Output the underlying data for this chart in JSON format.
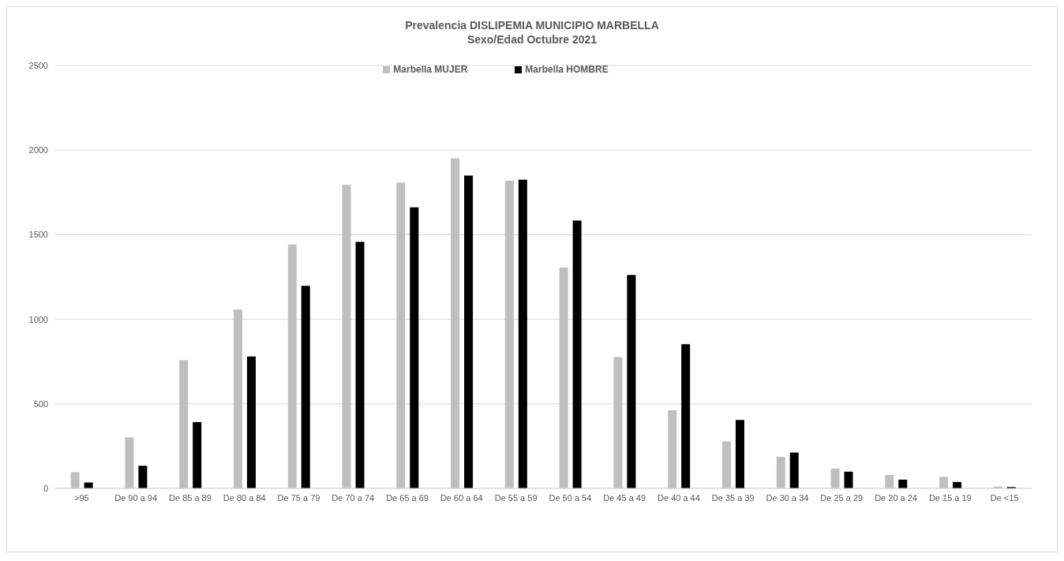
{
  "chart_data": {
    "type": "bar",
    "title": "Prevalencia DISLIPEMIA MUNICIPIO MARBELLA",
    "subtitle": "Sexo/Edad Octubre 2021",
    "categories": [
      ">95",
      "De 90 a 94",
      "De 85 a 89",
      "De 80 a 84",
      "De 75 a 79",
      "De 70 a 74",
      "De 65 a 69",
      "De 60 a 64",
      "De 55 a 59",
      "De 50 a 54",
      "De 45 a 49",
      "De 40 a 44",
      "De 35 a 39",
      "De 30 a 34",
      "De 25 a 29",
      "De 20 a 24",
      "De 15 a 19",
      "De <15"
    ],
    "series": [
      {
        "name": "Marbella MUJER",
        "color": "#bfbfbf",
        "values": [
          96,
          302,
          759,
          1058,
          1442,
          1794,
          1808,
          1951,
          1819,
          1306,
          777,
          462,
          278,
          187,
          117,
          79,
          68,
          11
        ]
      },
      {
        "name": "Marbella HOMBRE",
        "color": "#000000",
        "values": [
          35,
          134,
          392,
          780,
          1198,
          1458,
          1662,
          1849,
          1825,
          1583,
          1262,
          852,
          405,
          212,
          99,
          52,
          38,
          8
        ]
      }
    ],
    "ylim": [
      0,
      2500
    ],
    "yticks": [
      0,
      500,
      1000,
      1500,
      2000,
      2500
    ],
    "grid": "y",
    "legend": "top"
  }
}
